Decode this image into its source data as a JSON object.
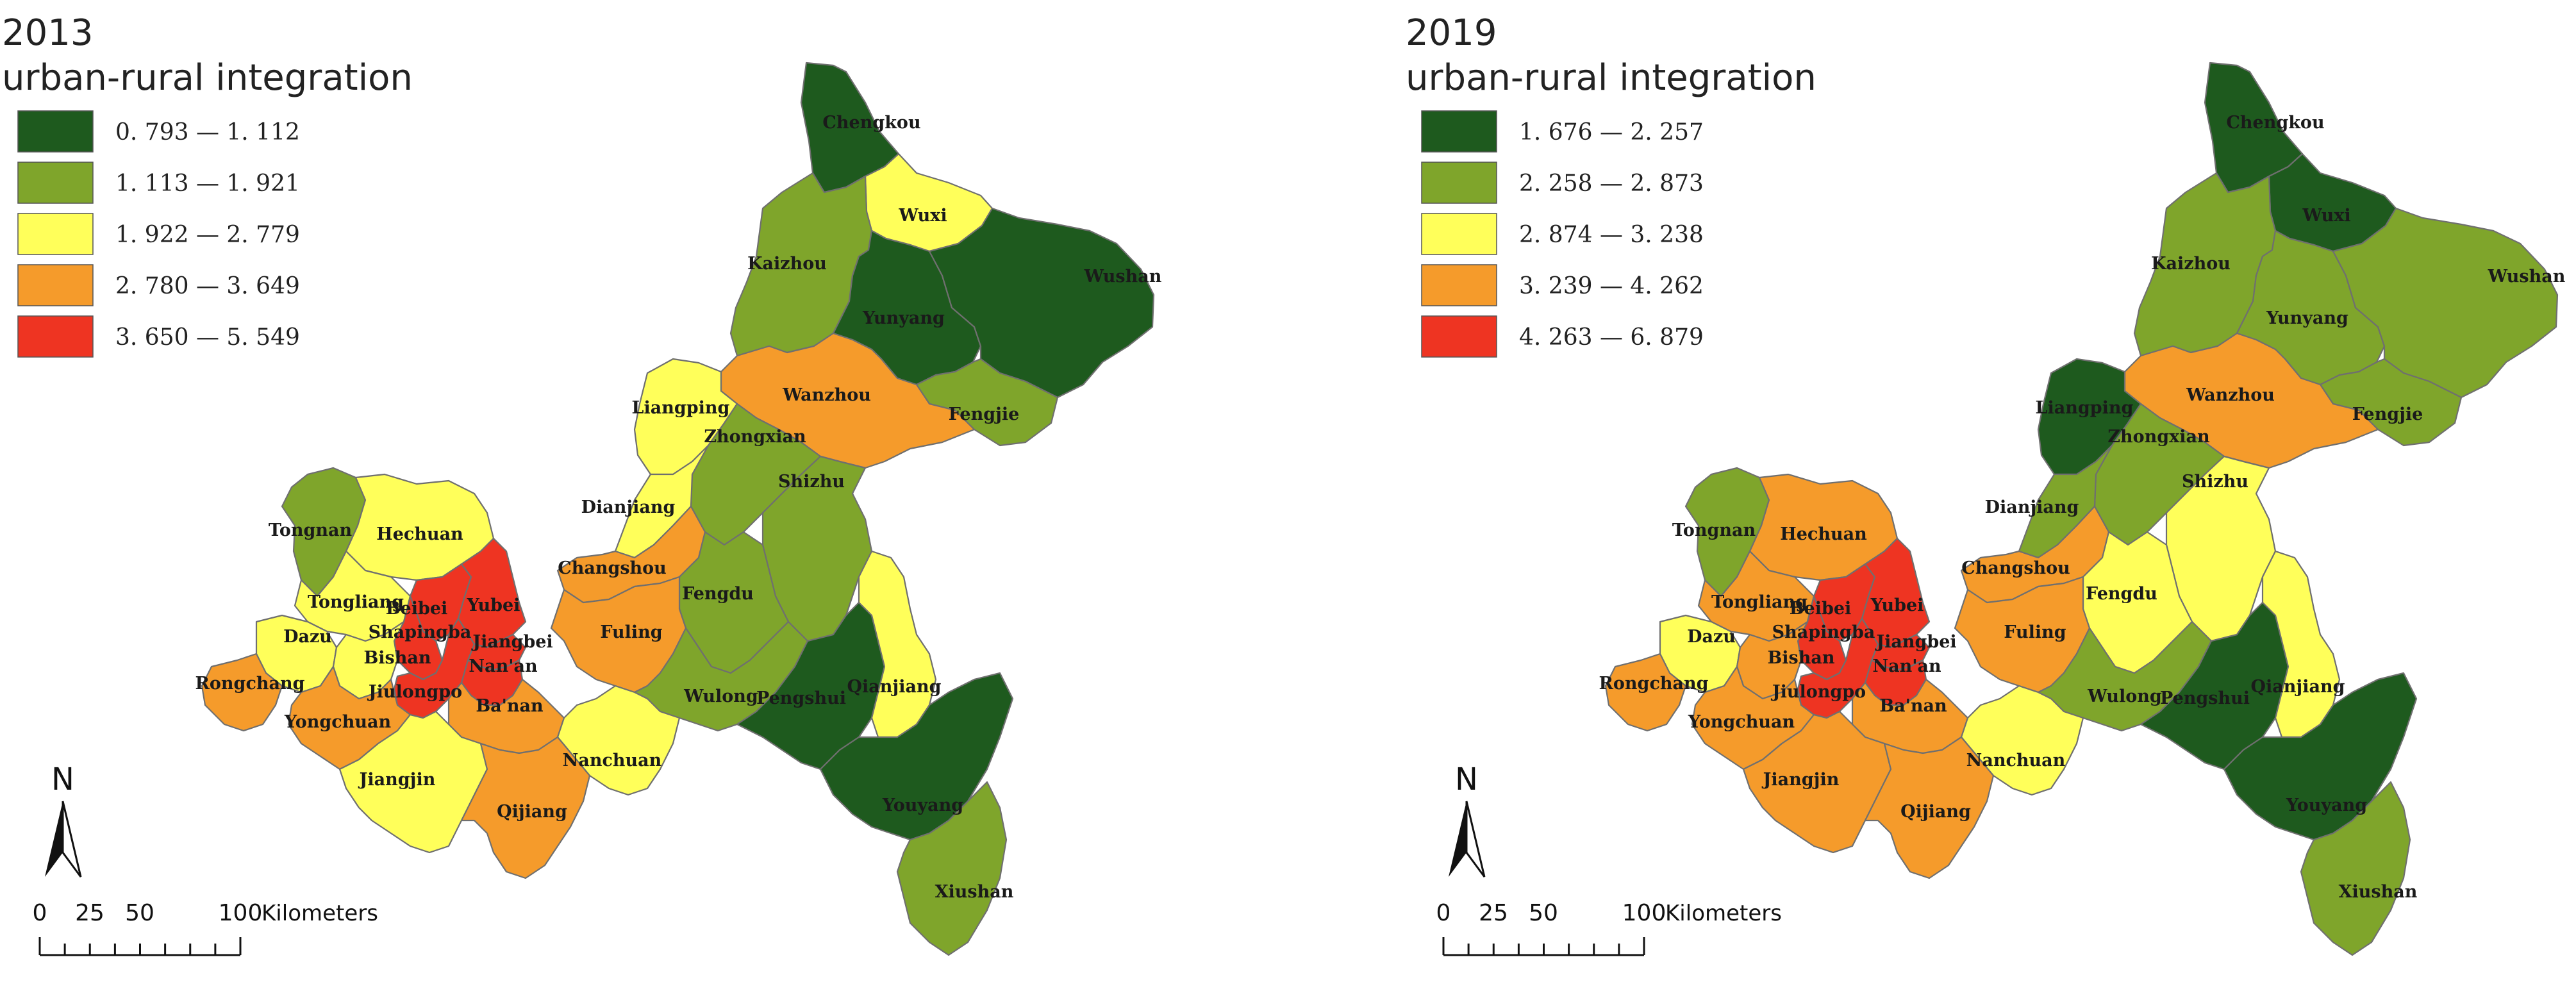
{
  "panels": [
    {
      "year": "2013",
      "subtitle": "urban-rural integration",
      "legend": [
        {
          "label": "0. 793 — 1. 112",
          "color": "#1e5a1e"
        },
        {
          "label": "1. 113 — 1. 921",
          "color": "#7fa52b"
        },
        {
          "label": "1. 922 — 2. 779",
          "color": "#ffff5a"
        },
        {
          "label": "2. 780 — 3. 649",
          "color": "#f59b2b"
        },
        {
          "label": "3. 650 — 5. 549",
          "color": "#ee3422"
        }
      ],
      "classes": {
        "Chengkou": 0,
        "Wuxi": 2,
        "Kaizhou": 1,
        "Yunyang": 0,
        "Wushan": 0,
        "Fengjie": 1,
        "Wanzhou": 3,
        "Liangping": 2,
        "Zhongxian": 1,
        "Shizhu": 1,
        "Dianjiang": 2,
        "Tongnan": 1,
        "Hechuan": 2,
        "Changshou": 3,
        "Fengdu": 1,
        "Tongliang": 2,
        "Beibei": 4,
        "Yubei": 4,
        "Dazu": 2,
        "Shapingba": 4,
        "Jiangbei": 4,
        "Bishan": 2,
        "Nanan": 4,
        "Fuling": 3,
        "Rongchang": 3,
        "Jiulongpo": 4,
        "Banan": 3,
        "Yongchuan": 3,
        "Wulong": 1,
        "Pengshui": 0,
        "Qianjiang": 2,
        "Nanchuan": 2,
        "Jiangjin": 2,
        "Qijiang": 3,
        "Youyang": 0,
        "Xiushan": 1
      }
    },
    {
      "year": "2019",
      "subtitle": "urban-rural integration",
      "legend": [
        {
          "label": "1. 676 — 2. 257",
          "color": "#1e5a1e"
        },
        {
          "label": "2. 258 — 2. 873",
          "color": "#7fa52b"
        },
        {
          "label": "2. 874 — 3. 238",
          "color": "#ffff5a"
        },
        {
          "label": "3. 239 — 4. 262",
          "color": "#f59b2b"
        },
        {
          "label": "4. 263 — 6. 879",
          "color": "#ee3422"
        }
      ],
      "classes": {
        "Chengkou": 0,
        "Wuxi": 0,
        "Kaizhou": 1,
        "Yunyang": 1,
        "Wushan": 1,
        "Fengjie": 1,
        "Wanzhou": 3,
        "Liangping": 0,
        "Zhongxian": 1,
        "Shizhu": 2,
        "Dianjiang": 1,
        "Tongnan": 1,
        "Hechuan": 3,
        "Changshou": 3,
        "Fengdu": 2,
        "Tongliang": 3,
        "Beibei": 4,
        "Yubei": 4,
        "Dazu": 2,
        "Shapingba": 4,
        "Jiangbei": 4,
        "Bishan": 3,
        "Nanan": 4,
        "Fuling": 3,
        "Rongchang": 3,
        "Jiulongpo": 4,
        "Banan": 3,
        "Yongchuan": 3,
        "Wulong": 1,
        "Pengshui": 0,
        "Qianjiang": 2,
        "Nanchuan": 2,
        "Jiangjin": 3,
        "Qijiang": 3,
        "Youyang": 0,
        "Xiushan": 1
      }
    }
  ],
  "district_names": {
    "Chengkou": "Chengkou",
    "Wuxi": "Wuxi",
    "Kaizhou": "Kaizhou",
    "Yunyang": "Yunyang",
    "Wushan": "Wushan",
    "Fengjie": "Fengjie",
    "Wanzhou": "Wanzhou",
    "Liangping": "Liangping",
    "Zhongxian": "Zhongxian",
    "Shizhu": "Shizhu",
    "Dianjiang": "Dianjiang",
    "Tongnan": "Tongnan",
    "Hechuan": "Hechuan",
    "Changshou": "Changshou",
    "Fengdu": "Fengdu",
    "Tongliang": "Tongliang",
    "Beibei": "Beibei",
    "Yubei": "Yubei",
    "Dazu": "Dazu",
    "Shapingba": "Shapingba",
    "Jiangbei": "Jiangbei",
    "Bishan": "Bishan",
    "Nanan": "Nan'an",
    "Fuling": "Fuling",
    "Rongchang": "Rongchang",
    "Jiulongpo": "Jiulongpo",
    "Banan": "Ba'nan",
    "Yongchuan": "Yongchuan",
    "Wulong": "Wulong",
    "Pengshui": "Pengshui",
    "Qianjiang": "Qianjiang",
    "Nanchuan": "Nanchuan",
    "Jiangjin": "Jiangjin",
    "Qijiang": "Qijiang",
    "Youyang": "Youyang",
    "Xiushan": "Xiushan"
  },
  "north_arrow": {
    "label": "N",
    "icon": "north-arrow-icon"
  },
  "scale_bar": {
    "ticks": [
      "0",
      "25",
      "50",
      "100"
    ],
    "unit": "Kilometers"
  }
}
